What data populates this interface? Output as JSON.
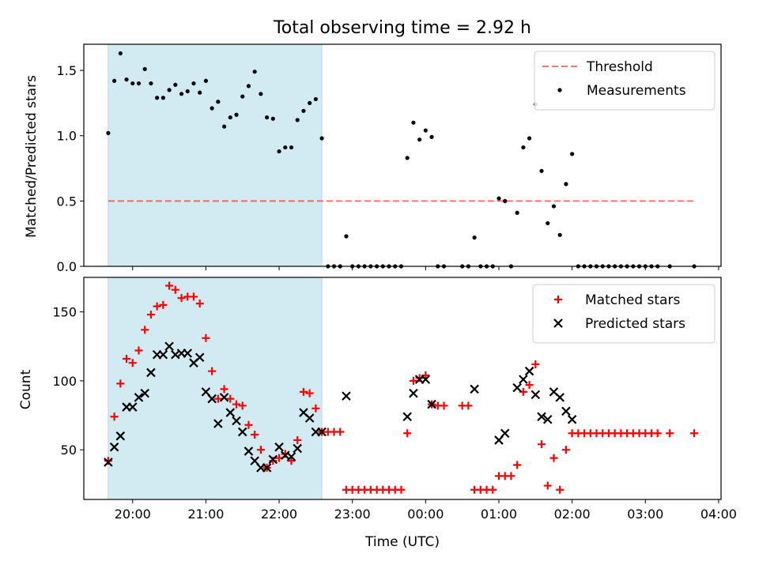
{
  "chart_data": [
    {
      "type": "scatter",
      "title": "Total observing time = 2.92 h",
      "xlabel": "",
      "ylabel": "Matched/Predicted stars",
      "ylim": [
        0,
        1.7
      ],
      "yticks": [
        "0.0",
        "0.5",
        "1.0",
        "1.5"
      ],
      "xlim": [
        "19:20",
        "04:02"
      ],
      "shaded_region": [
        "19:40",
        "22:35"
      ],
      "shaded_color": "#add8e6",
      "legend_position": "top-right",
      "threshold": {
        "name": "Threshold",
        "value": 0.5,
        "x_range": [
          "19:40",
          "03:40"
        ],
        "color": "#ff0000"
      },
      "series": [
        {
          "name": "Measurements",
          "color": "#000000",
          "marker": "dot",
          "points": [
            [
              "19:40",
              1.02
            ],
            [
              "19:45",
              1.42
            ],
            [
              "19:50",
              1.63
            ],
            [
              "19:55",
              1.43
            ],
            [
              "20:00",
              1.4
            ],
            [
              "20:05",
              1.4
            ],
            [
              "20:10",
              1.51
            ],
            [
              "20:15",
              1.4
            ],
            [
              "20:20",
              1.29
            ],
            [
              "20:25",
              1.29
            ],
            [
              "20:30",
              1.35
            ],
            [
              "20:35",
              1.39
            ],
            [
              "20:40",
              1.32
            ],
            [
              "20:45",
              1.34
            ],
            [
              "20:50",
              1.4
            ],
            [
              "20:55",
              1.33
            ],
            [
              "21:00",
              1.42
            ],
            [
              "21:05",
              1.21
            ],
            [
              "21:10",
              1.26
            ],
            [
              "21:15",
              1.07
            ],
            [
              "21:20",
              1.14
            ],
            [
              "21:25",
              1.16
            ],
            [
              "21:30",
              1.3
            ],
            [
              "21:35",
              1.38
            ],
            [
              "21:40",
              1.49
            ],
            [
              "21:45",
              1.32
            ],
            [
              "21:50",
              1.14
            ],
            [
              "21:55",
              1.13
            ],
            [
              "22:00",
              0.88
            ],
            [
              "22:05",
              0.91
            ],
            [
              "22:10",
              0.91
            ],
            [
              "22:15",
              1.12
            ],
            [
              "22:20",
              1.19
            ],
            [
              "22:25",
              1.25
            ],
            [
              "22:30",
              1.28
            ],
            [
              "22:35",
              0.98
            ],
            [
              "22:40",
              0
            ],
            [
              "22:45",
              0
            ],
            [
              "22:50",
              0
            ],
            [
              "22:55",
              0.23
            ],
            [
              "23:00",
              0
            ],
            [
              "23:05",
              0
            ],
            [
              "23:10",
              0
            ],
            [
              "23:15",
              0
            ],
            [
              "23:20",
              0
            ],
            [
              "23:25",
              0
            ],
            [
              "23:30",
              0
            ],
            [
              "23:35",
              0
            ],
            [
              "23:40",
              0
            ],
            [
              "23:45",
              0.83
            ],
            [
              "23:50",
              1.1
            ],
            [
              "23:55",
              0.97
            ],
            [
              "00:00",
              1.04
            ],
            [
              "00:05",
              0.99
            ],
            [
              "00:10",
              0
            ],
            [
              "00:15",
              0
            ],
            [
              "00:30",
              0
            ],
            [
              "00:35",
              0
            ],
            [
              "00:40",
              0.22
            ],
            [
              "00:45",
              0
            ],
            [
              "00:50",
              0
            ],
            [
              "00:55",
              0
            ],
            [
              "01:00",
              0.52
            ],
            [
              "01:05",
              0.5
            ],
            [
              "01:10",
              0
            ],
            [
              "01:15",
              0.41
            ],
            [
              "01:20",
              0.91
            ],
            [
              "01:25",
              0.98
            ],
            [
              "01:30",
              1.24
            ],
            [
              "01:35",
              0.73
            ],
            [
              "01:40",
              0.33
            ],
            [
              "01:45",
              0.46
            ],
            [
              "01:50",
              0.24
            ],
            [
              "01:55",
              0.63
            ],
            [
              "02:00",
              0.86
            ],
            [
              "02:05",
              0
            ],
            [
              "02:10",
              0
            ],
            [
              "02:15",
              0
            ],
            [
              "02:20",
              0
            ],
            [
              "02:25",
              0
            ],
            [
              "02:30",
              0
            ],
            [
              "02:35",
              0
            ],
            [
              "02:40",
              0
            ],
            [
              "02:45",
              0
            ],
            [
              "02:50",
              0
            ],
            [
              "02:55",
              0
            ],
            [
              "03:00",
              0
            ],
            [
              "03:05",
              0
            ],
            [
              "03:10",
              0
            ],
            [
              "03:20",
              0
            ],
            [
              "03:40",
              0
            ]
          ]
        }
      ]
    },
    {
      "type": "scatter",
      "title": "",
      "xlabel": "Time (UTC)",
      "ylabel": "Count",
      "ylim": [
        14,
        175
      ],
      "yticks": [
        "50",
        "100",
        "150"
      ],
      "xlim": [
        "19:20",
        "04:02"
      ],
      "xticks": [
        "20:00",
        "21:00",
        "22:00",
        "23:00",
        "00:00",
        "01:00",
        "02:00",
        "03:00",
        "04:00"
      ],
      "shaded_region": [
        "19:40",
        "22:35"
      ],
      "shaded_color": "#add8e6",
      "legend_position": "top-right",
      "series": [
        {
          "name": "Matched stars",
          "color": "#ff0000",
          "marker": "plus",
          "points": [
            [
              "19:40",
              42
            ],
            [
              "19:45",
              74
            ],
            [
              "19:50",
              98
            ],
            [
              "19:55",
              116
            ],
            [
              "20:00",
              113
            ],
            [
              "20:05",
              122
            ],
            [
              "20:10",
              137
            ],
            [
              "20:15",
              148
            ],
            [
              "20:20",
              154
            ],
            [
              "20:25",
              155
            ],
            [
              "20:30",
              169
            ],
            [
              "20:35",
              166
            ],
            [
              "20:40",
              160
            ],
            [
              "20:45",
              161
            ],
            [
              "20:50",
              161
            ],
            [
              "20:55",
              156
            ],
            [
              "21:00",
              131
            ],
            [
              "21:05",
              107
            ],
            [
              "21:10",
              87
            ],
            [
              "21:15",
              94
            ],
            [
              "21:20",
              87
            ],
            [
              "21:25",
              83
            ],
            [
              "21:30",
              82
            ],
            [
              "21:35",
              68
            ],
            [
              "21:40",
              61
            ],
            [
              "21:45",
              50
            ],
            [
              "21:50",
              37
            ],
            [
              "21:55",
              42
            ],
            [
              "22:00",
              44
            ],
            [
              "22:05",
              47
            ],
            [
              "22:10",
              42
            ],
            [
              "22:15",
              57
            ],
            [
              "22:20",
              92
            ],
            [
              "22:25",
              91
            ],
            [
              "22:30",
              80
            ],
            [
              "22:35",
              63
            ],
            [
              "22:40",
              63
            ],
            [
              "22:45",
              63
            ],
            [
              "22:50",
              63
            ],
            [
              "22:55",
              21
            ],
            [
              "23:00",
              21
            ],
            [
              "23:05",
              21
            ],
            [
              "23:10",
              21
            ],
            [
              "23:15",
              21
            ],
            [
              "23:20",
              21
            ],
            [
              "23:25",
              21
            ],
            [
              "23:30",
              21
            ],
            [
              "23:35",
              21
            ],
            [
              "23:40",
              21
            ],
            [
              "23:45",
              62
            ],
            [
              "23:50",
              100
            ],
            [
              "23:55",
              102
            ],
            [
              "00:00",
              104
            ],
            [
              "00:05",
              83
            ],
            [
              "00:10",
              82
            ],
            [
              "00:15",
              82
            ],
            [
              "00:30",
              82
            ],
            [
              "00:35",
              82
            ],
            [
              "00:40",
              21
            ],
            [
              "00:45",
              21
            ],
            [
              "00:50",
              21
            ],
            [
              "00:55",
              21
            ],
            [
              "01:00",
              31
            ],
            [
              "01:05",
              31
            ],
            [
              "01:10",
              31
            ],
            [
              "01:15",
              39
            ],
            [
              "01:20",
              92
            ],
            [
              "01:25",
              97
            ],
            [
              "01:30",
              112
            ],
            [
              "01:35",
              54
            ],
            [
              "01:40",
              24
            ],
            [
              "01:45",
              44
            ],
            [
              "01:50",
              21
            ],
            [
              "01:55",
              50
            ],
            [
              "02:00",
              62
            ],
            [
              "02:05",
              62
            ],
            [
              "02:10",
              62
            ],
            [
              "02:15",
              62
            ],
            [
              "02:20",
              62
            ],
            [
              "02:25",
              62
            ],
            [
              "02:30",
              62
            ],
            [
              "02:35",
              62
            ],
            [
              "02:40",
              62
            ],
            [
              "02:45",
              62
            ],
            [
              "02:50",
              62
            ],
            [
              "02:55",
              62
            ],
            [
              "03:00",
              62
            ],
            [
              "03:05",
              62
            ],
            [
              "03:10",
              62
            ],
            [
              "03:20",
              62
            ],
            [
              "03:40",
              62
            ]
          ]
        },
        {
          "name": "Predicted stars",
          "color": "#000000",
          "marker": "x",
          "points": [
            [
              "19:40",
              41
            ],
            [
              "19:45",
              52
            ],
            [
              "19:50",
              60
            ],
            [
              "19:55",
              81
            ],
            [
              "20:00",
              81
            ],
            [
              "20:05",
              88
            ],
            [
              "20:10",
              91
            ],
            [
              "20:15",
              106
            ],
            [
              "20:20",
              119
            ],
            [
              "20:25",
              119
            ],
            [
              "20:30",
              125
            ],
            [
              "20:35",
              119
            ],
            [
              "20:40",
              120
            ],
            [
              "20:45",
              120
            ],
            [
              "20:50",
              113
            ],
            [
              "20:55",
              117
            ],
            [
              "21:00",
              92
            ],
            [
              "21:05",
              87
            ],
            [
              "21:10",
              69
            ],
            [
              "21:15",
              88
            ],
            [
              "21:20",
              77
            ],
            [
              "21:25",
              71
            ],
            [
              "21:30",
              63
            ],
            [
              "21:35",
              49
            ],
            [
              "21:40",
              42
            ],
            [
              "21:45",
              37
            ],
            [
              "21:50",
              37
            ],
            [
              "21:55",
              43
            ],
            [
              "22:00",
              52
            ],
            [
              "22:05",
              46
            ],
            [
              "22:10",
              45
            ],
            [
              "22:15",
              51
            ],
            [
              "22:20",
              77
            ],
            [
              "22:25",
              73
            ],
            [
              "22:30",
              63
            ],
            [
              "22:35",
              63
            ],
            [
              "22:55",
              89
            ],
            [
              "23:45",
              74
            ],
            [
              "23:50",
              91
            ],
            [
              "23:55",
              101
            ],
            [
              "00:00",
              101
            ],
            [
              "00:05",
              83
            ],
            [
              "00:40",
              94
            ],
            [
              "01:00",
              57
            ],
            [
              "01:05",
              62
            ],
            [
              "01:15",
              95
            ],
            [
              "01:20",
              101
            ],
            [
              "01:25",
              107
            ],
            [
              "01:30",
              90
            ],
            [
              "01:35",
              74
            ],
            [
              "01:40",
              72
            ],
            [
              "01:45",
              92
            ],
            [
              "01:50",
              88
            ],
            [
              "01:55",
              78
            ],
            [
              "02:00",
              72
            ]
          ]
        }
      ]
    }
  ]
}
